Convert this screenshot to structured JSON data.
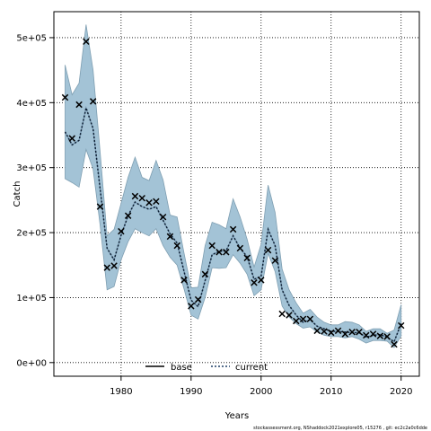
{
  "chart_data": {
    "type": "line",
    "xlabel": "Years",
    "ylabel": "Catch",
    "xlim": [
      1970.4,
      2022.6
    ],
    "ylim": [
      -21000,
      540000
    ],
    "grid": true,
    "legend_position": "bottom-center",
    "x_ticks": [
      1980,
      1990,
      2000,
      2010,
      2020
    ],
    "x_tick_labels": [
      "1980",
      "1990",
      "2000",
      "2010",
      "2020"
    ],
    "y_ticks": [
      0,
      100000,
      200000,
      300000,
      400000,
      500000
    ],
    "y_tick_labels": [
      "0e+00",
      "1e+05",
      "2e+05",
      "3e+05",
      "4e+05",
      "5e+05"
    ],
    "series": [
      {
        "name": "base",
        "style": "solid",
        "color": "#000000"
      },
      {
        "name": "current",
        "style": "dotted",
        "color": "#1f3f66"
      }
    ],
    "band_color": "#a3c3d6",
    "band_edge_color": "#7f9fb2",
    "years": [
      1972,
      1973,
      1974,
      1975,
      1976,
      1977,
      1978,
      1979,
      1980,
      1981,
      1982,
      1983,
      1984,
      1985,
      1986,
      1987,
      1988,
      1989,
      1990,
      1991,
      1992,
      1993,
      1994,
      1995,
      1996,
      1997,
      1998,
      1999,
      2000,
      2001,
      2002,
      2003,
      2004,
      2005,
      2006,
      2007,
      2008,
      2009,
      2010,
      2011,
      2012,
      2013,
      2014,
      2015,
      2016,
      2017,
      2018,
      2019,
      2020
    ],
    "observed": [
      408000,
      345000,
      397000,
      494000,
      402000,
      240000,
      146000,
      149000,
      202000,
      226000,
      256000,
      253000,
      246000,
      248000,
      224000,
      194000,
      180000,
      127000,
      87000,
      97000,
      136000,
      180000,
      170000,
      170000,
      205000,
      176000,
      161000,
      123000,
      127000,
      173000,
      157000,
      75000,
      73000,
      64000,
      67000,
      67000,
      49000,
      48000,
      46000,
      49000,
      44000,
      47000,
      47000,
      42000,
      44000,
      41000,
      40000,
      28000,
      57000
    ],
    "fit": [
      355000,
      335000,
      342000,
      392000,
      360000,
      268000,
      176000,
      158000,
      196000,
      226000,
      247000,
      240000,
      236000,
      240000,
      219000,
      198000,
      184000,
      140000,
      96000,
      86000,
      126000,
      166000,
      171000,
      172000,
      195000,
      176000,
      163000,
      128000,
      133000,
      205000,
      180000,
      112000,
      88000,
      73000,
      62000,
      66000,
      56000,
      52000,
      48000,
      48000,
      47000,
      46000,
      46000,
      39000,
      42000,
      43000,
      39000,
      32000,
      60000
    ],
    "upper": [
      458000,
      412000,
      430000,
      520000,
      450000,
      325000,
      195000,
      205000,
      245000,
      285000,
      316000,
      285000,
      280000,
      311000,
      281000,
      227000,
      224000,
      168000,
      115000,
      116000,
      180000,
      216000,
      212000,
      206000,
      252000,
      224000,
      190000,
      147000,
      182000,
      273000,
      231000,
      144000,
      112000,
      92000,
      76000,
      82000,
      70000,
      62000,
      58000,
      58000,
      63000,
      62000,
      58000,
      48000,
      52000,
      52000,
      45000,
      50000,
      89000
    ],
    "lower": [
      283000,
      277000,
      270000,
      328000,
      298000,
      212000,
      112000,
      117000,
      158000,
      186000,
      206000,
      200000,
      195000,
      206000,
      180000,
      162000,
      150000,
      113000,
      73000,
      67000,
      100000,
      146000,
      145000,
      146000,
      166000,
      153000,
      136000,
      103000,
      112000,
      168000,
      140000,
      87000,
      70000,
      60000,
      53000,
      55000,
      47000,
      42000,
      40000,
      40000,
      38000,
      40000,
      36000,
      30000,
      34000,
      34000,
      33000,
      23000,
      41000
    ]
  },
  "footer_text": "stockassessment.org, NShaddock2021explore05, r15276 ,  git:  ec2c2a0c6dde"
}
